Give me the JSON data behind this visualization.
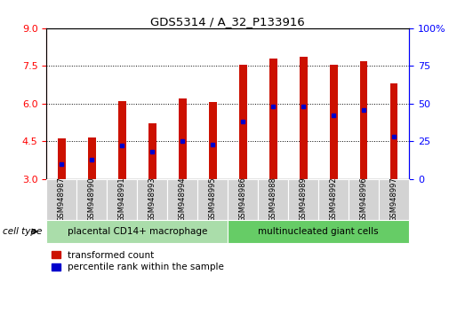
{
  "title": "GDS5314 / A_32_P133916",
  "samples": [
    "GSM948987",
    "GSM948990",
    "GSM948991",
    "GSM948993",
    "GSM948994",
    "GSM948995",
    "GSM948986",
    "GSM948988",
    "GSM948989",
    "GSM948992",
    "GSM948996",
    "GSM948997"
  ],
  "transformed_count": [
    4.6,
    4.65,
    6.1,
    5.2,
    6.2,
    6.05,
    7.55,
    7.8,
    7.85,
    7.55,
    7.7,
    6.8
  ],
  "percentile_rank": [
    10,
    13,
    22,
    18,
    25,
    23,
    38,
    48,
    48,
    42,
    46,
    28
  ],
  "groups": [
    {
      "label": "placental CD14+ macrophage",
      "start": 0,
      "end": 6,
      "color": "#aaddaa"
    },
    {
      "label": "multinucleated giant cells",
      "start": 6,
      "end": 12,
      "color": "#66cc66"
    }
  ],
  "ylim_left": [
    3,
    9
  ],
  "ylim_right": [
    0,
    100
  ],
  "yticks_left": [
    3,
    4.5,
    6,
    7.5,
    9
  ],
  "yticks_right": [
    0,
    25,
    50,
    75,
    100
  ],
  "bar_color": "#cc1100",
  "percentile_color": "#0000cc",
  "bar_width": 0.25,
  "baseline": 3.0,
  "background_color": "#ffffff",
  "cell_type_label": "cell type",
  "legend_items": [
    {
      "label": "transformed count",
      "color": "#cc1100"
    },
    {
      "label": "percentile rank within the sample",
      "color": "#0000cc"
    }
  ]
}
